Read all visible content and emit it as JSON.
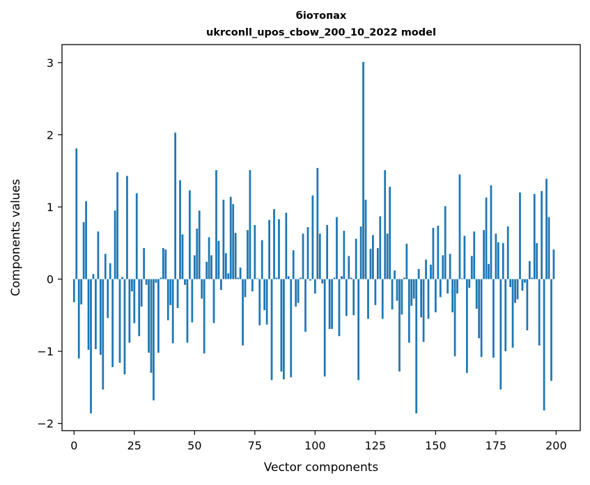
{
  "chart_data": {
    "type": "bar",
    "title": "біотопах",
    "subtitle": "ukrconll_upos_cbow_200_10_2022 model",
    "xlabel": "Vector components",
    "ylabel": "Components values",
    "xlim": [
      -5,
      210
    ],
    "ylim": [
      -2.1,
      3.25
    ],
    "x_ticks": [
      0,
      25,
      50,
      75,
      100,
      125,
      150,
      175,
      200
    ],
    "y_ticks": [
      -2,
      -1,
      0,
      1,
      2,
      3
    ],
    "y_tick_labels": [
      "−2",
      "−1",
      "0",
      "1",
      "2",
      "3"
    ],
    "bar_color": "#1f77b4",
    "grid": false,
    "x": [
      0,
      1,
      2,
      3,
      4,
      5,
      6,
      7,
      8,
      9,
      10,
      11,
      12,
      13,
      14,
      15,
      16,
      17,
      18,
      19,
      20,
      21,
      22,
      23,
      24,
      25,
      26,
      27,
      28,
      29,
      30,
      31,
      32,
      33,
      34,
      35,
      36,
      37,
      38,
      39,
      40,
      41,
      42,
      43,
      44,
      45,
      46,
      47,
      48,
      49,
      50,
      51,
      52,
      53,
      54,
      55,
      56,
      57,
      58,
      59,
      60,
      61,
      62,
      63,
      64,
      65,
      66,
      67,
      68,
      69,
      70,
      71,
      72,
      73,
      74,
      75,
      76,
      77,
      78,
      79,
      80,
      81,
      82,
      83,
      84,
      85,
      86,
      87,
      88,
      89,
      90,
      91,
      92,
      93,
      94,
      95,
      96,
      97,
      98,
      99,
      100,
      101,
      102,
      103,
      104,
      105,
      106,
      107,
      108,
      109,
      110,
      111,
      112,
      113,
      114,
      115,
      116,
      117,
      118,
      119,
      120,
      121,
      122,
      123,
      124,
      125,
      126,
      127,
      128,
      129,
      130,
      131,
      132,
      133,
      134,
      135,
      136,
      137,
      138,
      139,
      140,
      141,
      142,
      143,
      144,
      145,
      146,
      147,
      148,
      149,
      150,
      151,
      152,
      153,
      154,
      155,
      156,
      157,
      158,
      159,
      160,
      161,
      162,
      163,
      164,
      165,
      166,
      167,
      168,
      169,
      170,
      171,
      172,
      173,
      174,
      175,
      176,
      177,
      178,
      179,
      180,
      181,
      182,
      183,
      184,
      185,
      186,
      187,
      188,
      189,
      190,
      191,
      192,
      193,
      194,
      195,
      196,
      197,
      198,
      199
    ],
    "values": [
      -0.32,
      1.81,
      -1.1,
      -0.35,
      0.79,
      1.08,
      -0.98,
      -1.86,
      0.07,
      -0.97,
      0.66,
      -1.05,
      -1.53,
      0.35,
      -0.54,
      0.22,
      -1.22,
      0.95,
      1.48,
      -1.16,
      0.03,
      -1.32,
      1.43,
      -0.88,
      -0.17,
      -0.61,
      1.19,
      -0.79,
      -0.38,
      0.43,
      -0.08,
      -1.02,
      -1.3,
      -1.68,
      -0.05,
      -1.02,
      0.02,
      0.43,
      0.41,
      -0.57,
      -0.36,
      -0.89,
      2.03,
      -0.4,
      1.37,
      0.62,
      -0.08,
      -0.88,
      1.23,
      -0.6,
      0.33,
      0.7,
      0.95,
      -0.27,
      -1.03,
      0.24,
      0.58,
      0.33,
      -0.61,
      1.51,
      0.53,
      -0.15,
      1.1,
      0.36,
      0.08,
      1.14,
      1.04,
      0.64,
      0.02,
      0.16,
      -0.92,
      -0.25,
      0.68,
      1.51,
      -0.17,
      0.75,
      0.01,
      -0.64,
      0.54,
      -0.43,
      -0.63,
      0.82,
      -1.4,
      0.97,
      0.02,
      0.83,
      -1.28,
      -1.39,
      0.92,
      0.04,
      -1.36,
      0.4,
      -0.38,
      -0.33,
      0.02,
      0.63,
      -0.73,
      0.72,
      -0.02,
      1.16,
      -0.2,
      1.54,
      0.63,
      -0.06,
      -1.35,
      0.75,
      -0.69,
      -0.69,
      0.02,
      0.86,
      -0.79,
      0.04,
      0.67,
      -0.51,
      0.32,
      0.02,
      -0.5,
      0.56,
      -1.4,
      0.73,
      3.01,
      1.1,
      -0.55,
      0.42,
      0.61,
      -0.36,
      0.43,
      0.87,
      -0.55,
      1.51,
      0.63,
      1.28,
      -0.42,
      0.12,
      -0.3,
      -1.28,
      -0.49,
      0.02,
      0.49,
      -0.88,
      -0.37,
      -0.27,
      -1.86,
      0.14,
      -0.53,
      -0.87,
      0.27,
      -0.55,
      0.2,
      0.71,
      -0.46,
      0.74,
      -0.25,
      0.33,
      1.01,
      -0.2,
      0.35,
      -0.46,
      -1.07,
      -0.2,
      1.45,
      0.01,
      0.6,
      -1.3,
      -0.12,
      0.32,
      0.66,
      -0.41,
      -0.82,
      -1.08,
      0.68,
      1.13,
      0.21,
      1.3,
      -1.09,
      0.63,
      0.51,
      -1.53,
      0.5,
      -1.0,
      0.73,
      -0.11,
      -0.95,
      -0.33,
      -0.28,
      1.2,
      -0.16,
      -0.05,
      -0.71,
      0.25,
      0.02,
      1.18,
      0.5,
      -0.92,
      1.22,
      -1.82,
      1.39,
      0.86,
      -1.41,
      0.41
    ]
  }
}
